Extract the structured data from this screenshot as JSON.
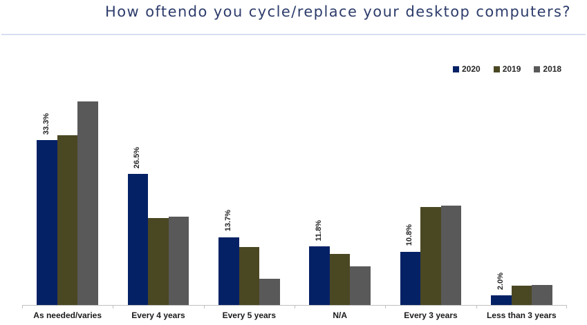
{
  "title": "How oftendo you cycle/replace your desktop computers?",
  "chart_data": {
    "type": "bar",
    "title": "How oftendo you cycle/replace your desktop computers?",
    "categories": [
      "As needed/varies",
      "Every 4 years",
      "Every 5 years",
      "N/A",
      "Every 3 years",
      "Less than 3 years"
    ],
    "series": [
      {
        "name": "2020",
        "color": "#052166",
        "values": [
          33.3,
          26.5,
          13.7,
          11.8,
          10.8,
          2.0
        ],
        "labels": [
          "33.3%",
          "26.5%",
          "13.7%",
          "11.8%",
          "10.8%",
          "2.0%"
        ]
      },
      {
        "name": "2019",
        "color": "#4a4723",
        "values": [
          34.3,
          17.6,
          11.7,
          10.3,
          19.8,
          3.9
        ]
      },
      {
        "name": "2018",
        "color": "#595959",
        "values": [
          41.1,
          17.8,
          5.3,
          7.8,
          20.1,
          4.0
        ]
      }
    ],
    "ylim": [
      0,
      61.6
    ],
    "legend_position": "top-right",
    "grid": false,
    "data_labels_series": "2020"
  },
  "colors": {
    "title": "#2d3c6b",
    "divider": "#3e4c72",
    "axis": "#bfbfbf",
    "label_text": "#262626"
  }
}
